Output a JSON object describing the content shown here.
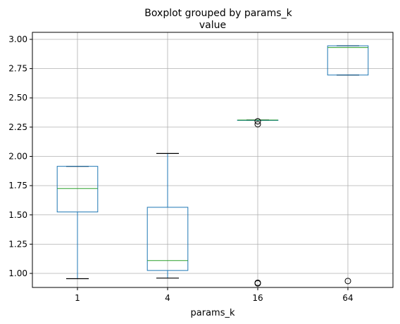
{
  "chart_data": {
    "type": "boxplot",
    "suptitle": "Boxplot grouped by params_k",
    "title": "value",
    "xlabel": "params_k",
    "ylabel": "",
    "categories": [
      "1",
      "4",
      "16",
      "64"
    ],
    "ylim": [
      0.88,
      3.06
    ],
    "yticks": [
      "1.00",
      "1.25",
      "1.50",
      "1.75",
      "2.00",
      "2.25",
      "2.50",
      "2.75",
      "3.00"
    ],
    "grid": true,
    "box_color": "#1f77b4",
    "median_color": "#2ca02c",
    "whisker_color": "#000000",
    "boxes": [
      {
        "category": "1",
        "whislo": 0.955,
        "q1": 1.525,
        "med": 1.725,
        "q3": 1.915,
        "whishi": 1.915,
        "fliers": []
      },
      {
        "category": "4",
        "whislo": 0.96,
        "q1": 1.025,
        "med": 1.11,
        "q3": 1.565,
        "whishi": 2.025,
        "fliers": []
      },
      {
        "category": "16",
        "whislo": 2.31,
        "q1": 2.31,
        "med": 2.31,
        "q3": 2.31,
        "whishi": 2.31,
        "fliers": [
          2.275,
          2.3,
          0.915,
          0.92
        ]
      },
      {
        "category": "64",
        "whislo": 2.695,
        "q1": 2.695,
        "med": 2.93,
        "q3": 2.945,
        "whishi": 2.945,
        "fliers": [
          0.935
        ]
      }
    ]
  }
}
